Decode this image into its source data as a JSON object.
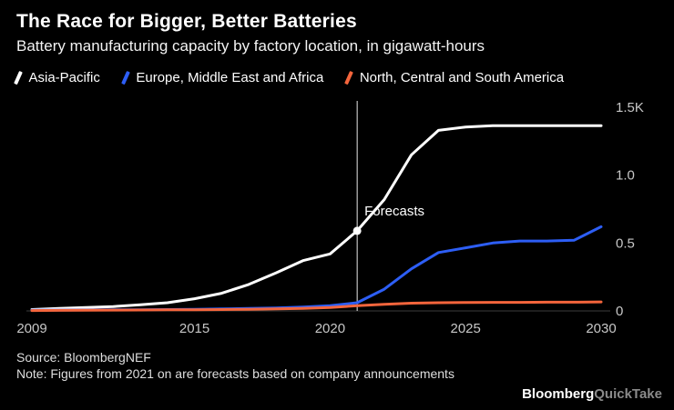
{
  "header": {
    "title": "The Race for Bigger, Better Batteries",
    "subtitle": "Battery manufacturing capacity by factory location, in gigawatt-hours"
  },
  "footer": {
    "source": "Source: BloombergNEF",
    "note": "Note: Figures from 2021 on are forecasts based on company announcements",
    "logo_primary": "Bloomberg",
    "logo_secondary": "QuickTake"
  },
  "colors": {
    "background": "#000000",
    "axis_text": "#c7c7c7",
    "baseline": "#3d3d3d",
    "forecast_line": "#e8e8e8"
  },
  "chart_data": {
    "type": "line",
    "title": "The Race for Bigger, Better Batteries",
    "subtitle": "Battery manufacturing capacity by factory location, in gigawatt-hours",
    "unit": "gigawatt-hours",
    "x": [
      2009,
      2010,
      2011,
      2012,
      2013,
      2014,
      2015,
      2016,
      2017,
      2018,
      2019,
      2020,
      2021,
      2022,
      2023,
      2024,
      2025,
      2026,
      2027,
      2028,
      2029,
      2030
    ],
    "xlim": [
      2009,
      2030
    ],
    "ylim": [
      0,
      1500
    ],
    "xticks": [
      2009,
      2015,
      2020,
      2025,
      2030
    ],
    "yticks": [
      {
        "value": 0,
        "label": "0"
      },
      {
        "value": 500,
        "label": "0.5"
      },
      {
        "value": 1000,
        "label": "1.0"
      },
      {
        "value": 1500,
        "label": "1.5K"
      }
    ],
    "grid": false,
    "legend_position": "top",
    "forecast": {
      "year": 2021,
      "label": "Forecasts",
      "marker_series": "Asia-Pacific",
      "marker_value": 590
    },
    "series": [
      {
        "name": "Asia-Pacific",
        "color": "#ffffff",
        "values": [
          10,
          18,
          25,
          32,
          45,
          60,
          90,
          130,
          195,
          280,
          370,
          420,
          590,
          820,
          1150,
          1330,
          1355,
          1365,
          1365,
          1365,
          1365,
          1365
        ]
      },
      {
        "name": "Europe, Middle East and Africa",
        "color": "#2d5ef5",
        "values": [
          5,
          6,
          7,
          8,
          9,
          10,
          12,
          15,
          18,
          22,
          28,
          38,
          60,
          160,
          310,
          430,
          465,
          500,
          515,
          515,
          520,
          620
        ]
      },
      {
        "name": "North, Central and South America",
        "color": "#f4653c",
        "values": [
          3,
          4,
          5,
          6,
          7,
          8,
          9,
          10,
          12,
          15,
          18,
          25,
          38,
          48,
          57,
          60,
          62,
          63,
          63,
          64,
          64,
          66
        ]
      }
    ]
  }
}
